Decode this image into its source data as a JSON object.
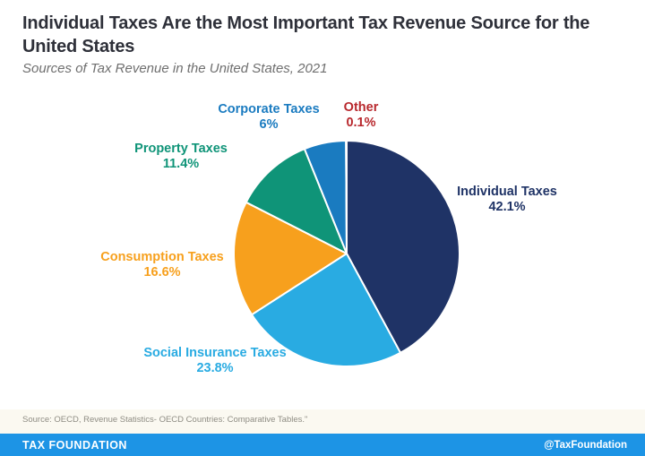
{
  "header": {
    "title": "Individual Taxes Are the Most Important Tax Revenue Source for the United States",
    "subtitle": "Sources of Tax Revenue in the United States, 2021"
  },
  "chart_data": {
    "type": "pie",
    "title": "Sources of Tax Revenue in the United States, 2021",
    "start_angle": "12 o'clock",
    "direction": "clockwise",
    "slice_gap_color": "#ffffff",
    "slices": [
      {
        "label": "Individual Taxes",
        "value": 42.1,
        "pct_label": "42.1%",
        "color": "#1f3366"
      },
      {
        "label": "Social Insurance Taxes",
        "value": 23.8,
        "pct_label": "23.8%",
        "color": "#29abe2"
      },
      {
        "label": "Consumption Taxes",
        "value": 16.6,
        "pct_label": "16.6%",
        "color": "#f7a01d"
      },
      {
        "label": "Property Taxes",
        "value": 11.4,
        "pct_label": "11.4%",
        "color": "#0f9478"
      },
      {
        "label": "Corporate Taxes",
        "value": 6,
        "pct_label": "6%",
        "color": "#1a7bc0"
      },
      {
        "label": "Other",
        "value": 0.1,
        "pct_label": "0.1%",
        "color": "#b8282d"
      }
    ]
  },
  "source": "Source: OECD, Revenue Statistics- OECD Countries: Comparative Tables.\"",
  "footer": {
    "brand": "TAX FOUNDATION",
    "handle": "@TaxFoundation",
    "bar_color": "#1d94e5"
  }
}
